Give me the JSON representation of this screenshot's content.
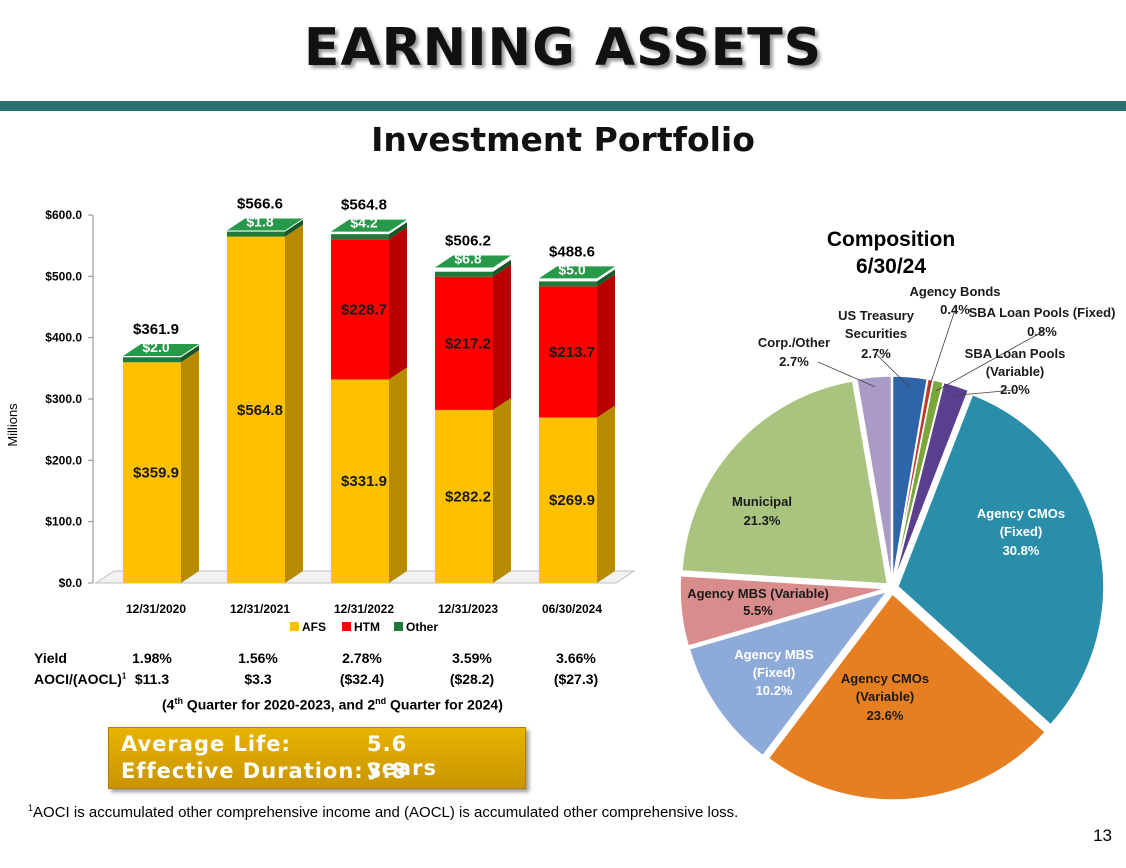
{
  "header": {
    "title": "EARNING ASSETS",
    "subtitle": "Investment Portfolio"
  },
  "colors": {
    "afs": "#ffc000",
    "htm": "#ff0000",
    "other": "#1f7a3a",
    "title_bar": "#2b6f6f"
  },
  "chart_data": [
    {
      "type": "bar",
      "stacked": true,
      "categories": [
        "12/31/2020",
        "12/31/2021",
        "12/31/2022",
        "12/31/2023",
        "06/30/2024"
      ],
      "series": [
        {
          "name": "AFS",
          "values": [
            359.9,
            564.8,
            331.9,
            282.2,
            269.9
          ],
          "labels": [
            "$359.9",
            "$564.8",
            "$331.9",
            "$282.2",
            "$269.9"
          ]
        },
        {
          "name": "HTM",
          "values": [
            0,
            0,
            228.7,
            217.2,
            213.7
          ],
          "labels": [
            "",
            "",
            "$228.7",
            "$217.2",
            "$213.7"
          ]
        },
        {
          "name": "Other",
          "values": [
            2.0,
            1.8,
            4.2,
            6.8,
            5.0
          ],
          "labels": [
            "$2.0",
            "$1.8",
            "$4.2",
            "$6.8",
            "$5.0"
          ]
        }
      ],
      "totals": [
        "$361.9",
        "$566.6",
        "$564.8",
        "$506.2",
        "$488.6"
      ],
      "ylabel": "Millions",
      "ylim": [
        0,
        600
      ],
      "yticks": [
        "$0.0",
        "$100.0",
        "$200.0",
        "$300.0",
        "$400.0",
        "$500.0",
        "$600.0"
      ],
      "legend": "bottom"
    },
    {
      "type": "pie",
      "title_line1": "Composition",
      "title_line2": "6/30/24",
      "slices": [
        {
          "label": "US Treasury Securities",
          "pct_label": "2.7%",
          "value": 2.7,
          "color": "#2e64a8"
        },
        {
          "label": "Agency Bonds",
          "pct_label": "0.4%",
          "value": 0.4,
          "color": "#c0392b"
        },
        {
          "label": "SBA Loan Pools (Fixed)",
          "pct_label": "0.8%",
          "value": 0.8,
          "color": "#7aa63a"
        },
        {
          "label": "SBA Loan Pools (Variable)",
          "pct_label": "2.0%",
          "value": 2.0,
          "color": "#5b3f8f"
        },
        {
          "label": "Agency CMOs (Fixed)",
          "pct_label": "30.8%",
          "value": 30.8,
          "color": "#2a8eab"
        },
        {
          "label": "Agency CMOs (Variable)",
          "pct_label": "23.6%",
          "value": 23.6,
          "color": "#e67e22"
        },
        {
          "label": "Agency MBS (Fixed)",
          "pct_label": "10.2%",
          "value": 10.2,
          "color": "#8eaad8"
        },
        {
          "label": "Agency MBS (Variable)",
          "pct_label": "5.5%",
          "value": 5.5,
          "color": "#d98c8c"
        },
        {
          "label": "Municipal",
          "pct_label": "21.3%",
          "value": 21.3,
          "color": "#a9c47f"
        },
        {
          "label": "Corp./Other",
          "pct_label": "2.7%",
          "value": 2.7,
          "color": "#a99bc6"
        }
      ]
    }
  ],
  "stats": {
    "yield_label": "Yield",
    "yield_values": [
      "1.98%",
      "1.56%",
      "2.78%",
      "3.59%",
      "3.66%"
    ],
    "aoci_label": "AOCI/(AOCL)",
    "aoci_sup": "1",
    "aoci_values": [
      "$11.3",
      "$3.3",
      "($32.4)",
      "($28.2)",
      "($27.3)"
    ],
    "quarter_note_pre": "(4",
    "quarter_note_sup1": "th",
    "quarter_note_mid": " Quarter for 2020-2023, and 2",
    "quarter_note_sup2": "nd",
    "quarter_note_post": " Quarter for 2024)"
  },
  "summary": {
    "avg_life_label": "Average Life:",
    "avg_life_value": "5.6 years",
    "duration_label": "Effective Duration:",
    "duration_value": "3.8"
  },
  "footnote": {
    "sup": "1",
    "text": "AOCI is accumulated other comprehensive income and (AOCL) is accumulated other comprehensive loss."
  },
  "page_number": "13"
}
